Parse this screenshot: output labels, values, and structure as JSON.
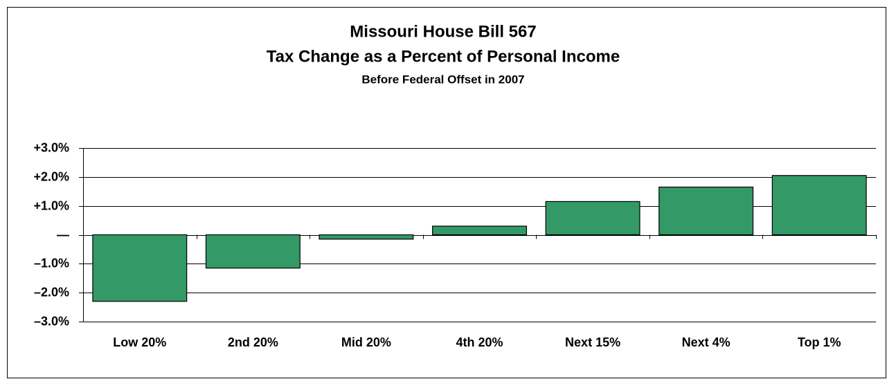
{
  "chart_data": {
    "type": "bar",
    "title": "Missouri House Bill 567",
    "subtitle": "Tax Change as a Percent of Personal Income",
    "caption": "Before Federal Offset in 2007",
    "categories": [
      "Low 20%",
      "2nd 20%",
      "Mid 20%",
      "4th 20%",
      "Next 15%",
      "Next 4%",
      "Top 1%"
    ],
    "values": [
      -2.3,
      -1.15,
      -0.15,
      0.3,
      1.15,
      1.65,
      2.05
    ],
    "color": "#339966",
    "ylim": [
      -3,
      3
    ],
    "yticks": [
      {
        "value": 3,
        "label": "+3.0%"
      },
      {
        "value": 2,
        "label": "+2.0%"
      },
      {
        "value": 1,
        "label": "+1.0%"
      },
      {
        "value": 0,
        "label": "—"
      },
      {
        "value": -1,
        "label": "–1.0%"
      },
      {
        "value": -2,
        "label": "–2.0%"
      },
      {
        "value": -3,
        "label": "–3.0%"
      }
    ],
    "grid": true
  }
}
